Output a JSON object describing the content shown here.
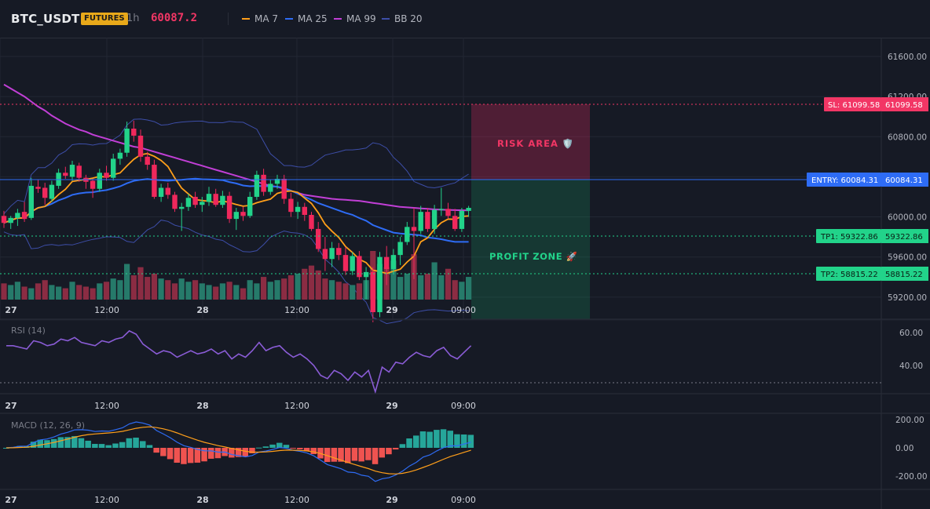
{
  "header": {
    "symbol": "BTC_USDT",
    "badge": "FUTURES",
    "timeframe": "1h",
    "last_price": "60087.2",
    "indicators": [
      {
        "label": "MA 7",
        "color": "#ff9f1a"
      },
      {
        "label": "MA 25",
        "color": "#2e6cf5"
      },
      {
        "label": "MA 99",
        "color": "#c13fd6"
      },
      {
        "label": "BB 20",
        "color": "#3d4ea8"
      }
    ]
  },
  "colors": {
    "bull": "#22d38a",
    "bear": "#f0285c",
    "vol_bull": "#267a6a",
    "vol_bear": "#8b2c43",
    "grid": "#222734"
  },
  "price_axis": {
    "ticks": [
      "61600.00",
      "61200.00",
      "60800.00",
      "60400.00",
      "60000.00",
      "59600.00",
      "59200.00"
    ]
  },
  "time_axis": {
    "labels": [
      "27",
      "12:00",
      "28",
      "12:00",
      "29",
      "09:00"
    ]
  },
  "trade": {
    "sl_label": "SL: 61099.58",
    "sl_value": "61099.58",
    "entry_label": "ENTRY: 60084.31",
    "entry_value": "60084.31",
    "tp1_label": "TP1: 59322.86",
    "tp1_value": "59322.86",
    "tp2_label": "TP2: 58815.22",
    "tp2_value": "58815.22",
    "risk_text": "RISK AREA 🛡️",
    "profit_text": "PROFIT ZONE 🚀"
  },
  "rsi": {
    "title": "RSI (14)",
    "ticks": [
      "60.00",
      "40.00"
    ]
  },
  "macd": {
    "title": "MACD (12, 26, 9)",
    "ticks": [
      "200.00",
      "0.00",
      "-200.00"
    ]
  },
  "chart_data": {
    "type": "candlestick",
    "ylim": [
      58800,
      61850
    ],
    "candles": [
      [
        60010,
        60060,
        59890,
        59940
      ],
      [
        59940,
        60010,
        59880,
        59990
      ],
      [
        59990,
        60080,
        59910,
        60040
      ],
      [
        60050,
        60150,
        59950,
        59980
      ],
      [
        59990,
        60390,
        59970,
        60310
      ],
      [
        60300,
        60370,
        60240,
        60280
      ],
      [
        60290,
        60340,
        60120,
        60190
      ],
      [
        60180,
        60360,
        60150,
        60320
      ],
      [
        60310,
        60480,
        60280,
        60440
      ],
      [
        60440,
        60500,
        60380,
        60410
      ],
      [
        60400,
        60560,
        60360,
        60520
      ],
      [
        60510,
        60540,
        60350,
        60390
      ],
      [
        60390,
        60420,
        60280,
        60350
      ],
      [
        60360,
        60380,
        60190,
        60280
      ],
      [
        60280,
        60480,
        60250,
        60440
      ],
      [
        60440,
        60510,
        60360,
        60390
      ],
      [
        60390,
        60630,
        60360,
        60580
      ],
      [
        60580,
        60680,
        60520,
        60640
      ],
      [
        60640,
        60950,
        60600,
        60880
      ],
      [
        60880,
        60960,
        60750,
        60810
      ],
      [
        60810,
        60870,
        60550,
        60600
      ],
      [
        60600,
        60650,
        60470,
        60520
      ],
      [
        60520,
        60570,
        60180,
        60200
      ],
      [
        60200,
        60330,
        60150,
        60290
      ],
      [
        60290,
        60340,
        60180,
        60220
      ],
      [
        60220,
        60250,
        60050,
        60080
      ],
      [
        60080,
        60140,
        59860,
        60100
      ],
      [
        60100,
        60230,
        60060,
        60190
      ],
      [
        60200,
        60250,
        60090,
        60120
      ],
      [
        60120,
        60200,
        60050,
        60150
      ],
      [
        60150,
        60300,
        60110,
        60230
      ],
      [
        60230,
        60280,
        60100,
        60120
      ],
      [
        60120,
        60260,
        60090,
        60210
      ],
      [
        60210,
        60250,
        59940,
        59980
      ],
      [
        59980,
        60090,
        59870,
        60050
      ],
      [
        60050,
        60100,
        59960,
        60010
      ],
      [
        60010,
        60250,
        59990,
        60200
      ],
      [
        60200,
        60460,
        60170,
        60420
      ],
      [
        60420,
        60480,
        60210,
        60250
      ],
      [
        60250,
        60370,
        60220,
        60330
      ],
      [
        60330,
        60420,
        60280,
        60380
      ],
      [
        60380,
        60420,
        60130,
        60180
      ],
      [
        60180,
        60240,
        60000,
        60050
      ],
      [
        60050,
        60150,
        59980,
        60100
      ],
      [
        60100,
        60140,
        59960,
        60020
      ],
      [
        60020,
        60050,
        59860,
        59880
      ],
      [
        59880,
        59950,
        59650,
        59680
      ],
      [
        59680,
        59800,
        59460,
        59580
      ],
      [
        59580,
        59750,
        59500,
        59690
      ],
      [
        59690,
        59740,
        59570,
        59620
      ],
      [
        59620,
        59700,
        59420,
        59460
      ],
      [
        59460,
        59650,
        59420,
        59610
      ],
      [
        59610,
        59660,
        59370,
        59400
      ],
      [
        59400,
        59500,
        59180,
        59450
      ],
      [
        59450,
        59500,
        58950,
        59050
      ],
      [
        59050,
        59650,
        59000,
        59600
      ],
      [
        59600,
        59710,
        59320,
        59480
      ],
      [
        59480,
        59680,
        59440,
        59620
      ],
      [
        59620,
        59800,
        59520,
        59750
      ],
      [
        59750,
        59950,
        59720,
        59900
      ],
      [
        59900,
        60090,
        59380,
        59860
      ],
      [
        59860,
        60110,
        59830,
        60050
      ],
      [
        60050,
        60090,
        59850,
        59880
      ],
      [
        59880,
        60120,
        59830,
        60070
      ],
      [
        60070,
        60290,
        60010,
        60080
      ],
      [
        60080,
        60140,
        59980,
        60010
      ],
      [
        60010,
        60080,
        59860,
        59880
      ],
      [
        59880,
        60090,
        59850,
        60060
      ],
      [
        60060,
        60110,
        60000,
        60090
      ]
    ],
    "volume": [
      1.0,
      0.9,
      1.1,
      0.8,
      0.7,
      1.0,
      1.2,
      0.9,
      0.8,
      0.7,
      1.1,
      0.9,
      0.8,
      0.7,
      1.0,
      1.1,
      1.3,
      1.2,
      2.2,
      1.5,
      2.0,
      1.4,
      1.6,
      1.3,
      1.2,
      1.0,
      1.3,
      1.1,
      1.2,
      1.0,
      0.9,
      0.8,
      1.0,
      1.1,
      0.9,
      0.7,
      1.2,
      1.0,
      1.4,
      1.1,
      1.2,
      1.3,
      1.5,
      1.6,
      1.9,
      2.1,
      1.8,
      1.3,
      1.2,
      1.1,
      1.0,
      0.9,
      1.0,
      1.2,
      3.0,
      2.2,
      2.0,
      2.4,
      1.4,
      1.6,
      2.8,
      1.5,
      1.6,
      2.3,
      1.5,
      1.9,
      1.2,
      1.1,
      1.4
    ],
    "ma99": [
      61320,
      61280,
      61240,
      61200,
      61150,
      61100,
      61060,
      61010,
      60970,
      60930,
      60900,
      60870,
      60850,
      60820,
      60800,
      60780,
      60760,
      60740,
      60720,
      60700,
      60690,
      60670,
      60650,
      60630,
      60610,
      60590,
      60570,
      60550,
      60530,
      60510,
      60490,
      60470,
      60450,
      60430,
      60410,
      60390,
      60370,
      60350,
      60330,
      60310,
      60300,
      60280,
      60260,
      60240,
      60220,
      60210,
      60200,
      60190,
      60180,
      60175,
      60170,
      60165,
      60160,
      60150,
      60140,
      60130,
      60120,
      60110,
      60100,
      60095,
      60090,
      60085,
      60080,
      60075,
      60072,
      60070,
      60068,
      60066,
      60065
    ],
    "rsi": [
      52,
      52,
      51,
      50,
      55,
      54,
      52,
      53,
      56,
      55,
      57,
      54,
      53,
      52,
      55,
      54,
      56,
      57,
      61,
      59,
      53,
      50,
      47,
      49,
      48,
      45,
      47,
      49,
      47,
      48,
      50,
      47,
      49,
      44,
      47,
      45,
      49,
      54,
      49,
      51,
      52,
      48,
      45,
      47,
      44,
      40,
      34,
      32,
      37,
      35,
      31,
      36,
      33,
      37,
      24,
      39,
      36,
      42,
      41,
      45,
      48,
      46,
      45,
      49,
      51,
      46,
      44,
      48,
      52
    ]
  }
}
